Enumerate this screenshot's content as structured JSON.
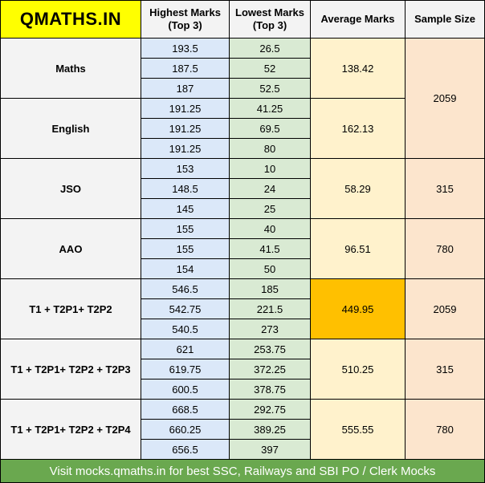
{
  "brand": "QMATHS.IN",
  "headers": {
    "highest": [
      "Highest Marks",
      "(Top 3)"
    ],
    "lowest": [
      "Lowest Marks",
      "(Top 3)"
    ],
    "average": "Average Marks",
    "sample": "Sample Size"
  },
  "rows": [
    {
      "subject": "Maths",
      "highest": [
        "193.5",
        "187.5",
        "187"
      ],
      "lowest": [
        "26.5",
        "52",
        "52.5"
      ],
      "average": "138.42"
    },
    {
      "subject": "English",
      "highest": [
        "191.25",
        "191.25",
        "191.25"
      ],
      "lowest": [
        "41.25",
        "69.5",
        "80"
      ],
      "average": "162.13"
    },
    {
      "subject": "JSO",
      "highest": [
        "153",
        "148.5",
        "145"
      ],
      "lowest": [
        "10",
        "24",
        "25"
      ],
      "average": "58.29",
      "sample": "315"
    },
    {
      "subject": "AAO",
      "highest": [
        "155",
        "155",
        "154"
      ],
      "lowest": [
        "40",
        "41.5",
        "50"
      ],
      "average": "96.51",
      "sample": "780"
    },
    {
      "subject": "T1 + T2P1+ T2P2",
      "highest": [
        "546.5",
        "542.75",
        "540.5"
      ],
      "lowest": [
        "185",
        "221.5",
        "273"
      ],
      "average": "449.95",
      "sample": "2059"
    },
    {
      "subject": "T1 + T2P1+ T2P2 + T2P3",
      "highest": [
        "621",
        "619.75",
        "600.5"
      ],
      "lowest": [
        "253.75",
        "372.25",
        "378.75"
      ],
      "average": "510.25",
      "sample": "315"
    },
    {
      "subject": "T1 + T2P1+ T2P2 + T2P4",
      "highest": [
        "668.5",
        "660.25",
        "656.5"
      ],
      "lowest": [
        "292.75",
        "389.25",
        "397"
      ],
      "average": "555.55",
      "sample": "780"
    }
  ],
  "shared_sample": "2059",
  "highlight_color": "#ffc000",
  "footer": "Visit mocks.qmaths.in for best SSC, Railways and SBI PO / Clerk Mocks"
}
